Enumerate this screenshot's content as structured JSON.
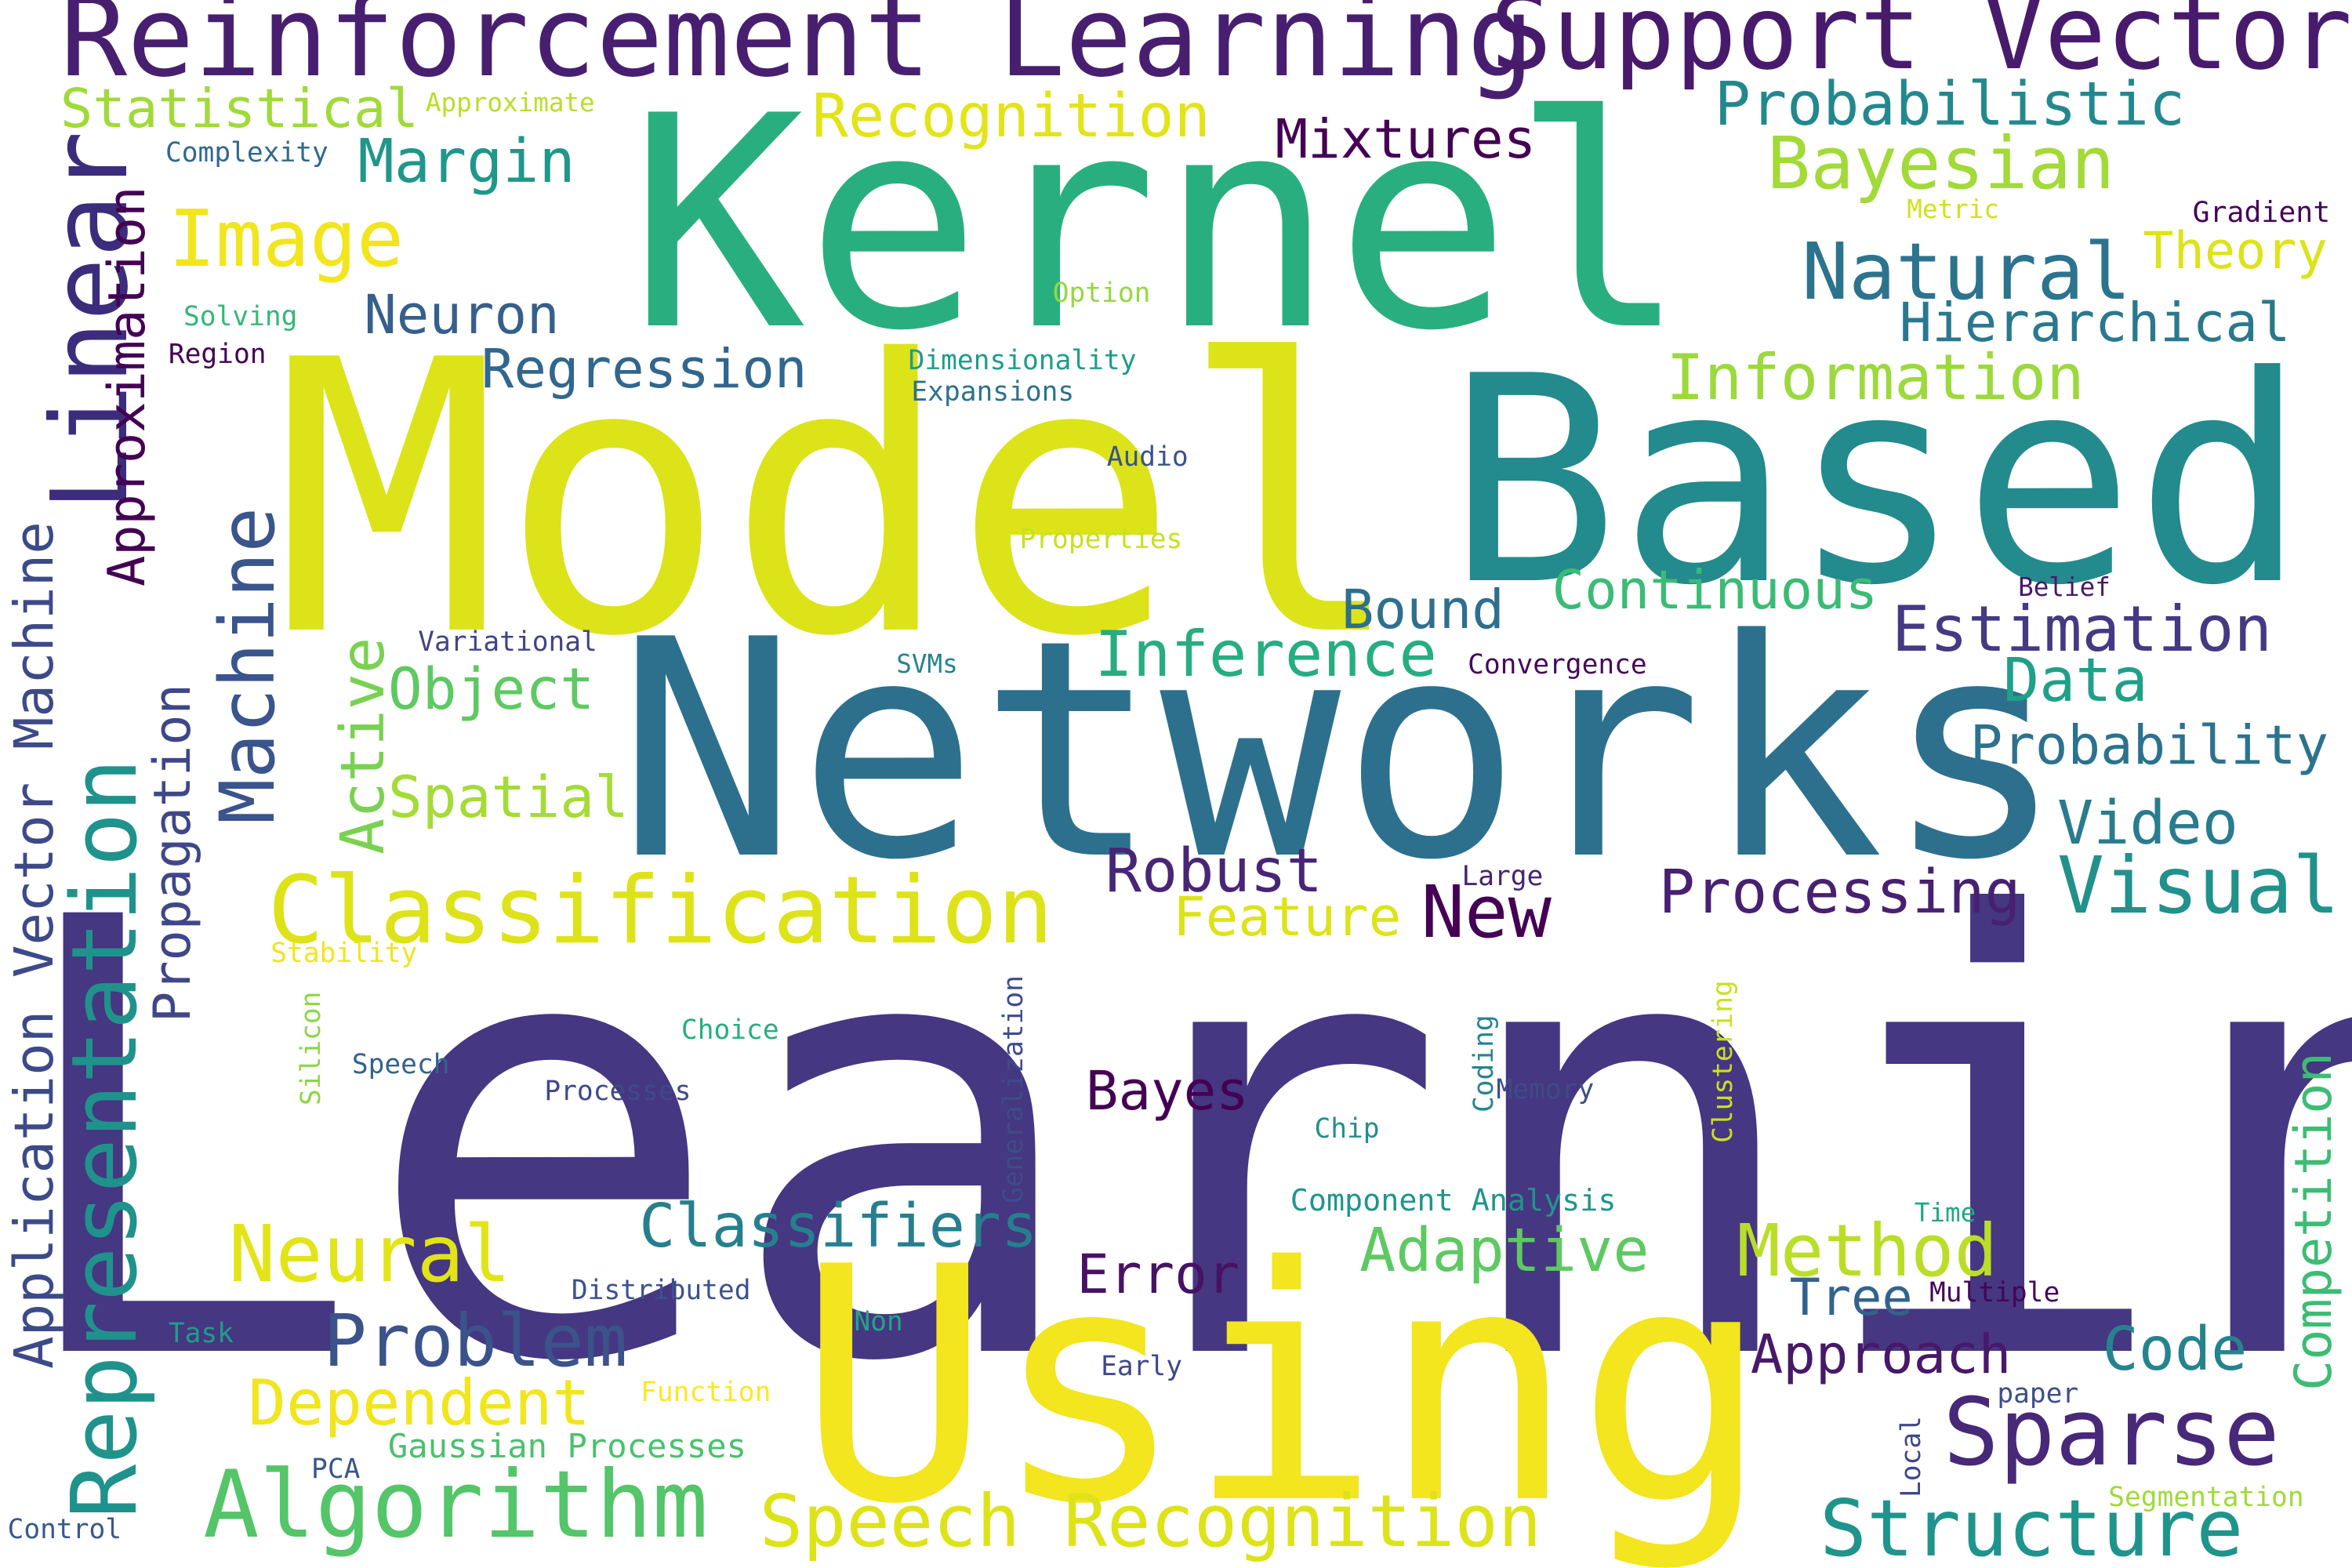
{
  "words": [
    {
      "text": "Learning",
      "color": "#453781"
    },
    {
      "text": "Model",
      "color": "#dce319"
    },
    {
      "text": "Networks",
      "color": "#2d708e"
    },
    {
      "text": "Kernel",
      "color": "#29af7f"
    },
    {
      "text": "Based",
      "color": "#238a8d"
    },
    {
      "text": "Using",
      "color": "#f3e51e"
    },
    {
      "text": "Reinforcement Learning",
      "color": "#481f70"
    },
    {
      "text": "Support Vector",
      "color": "#481a6c"
    },
    {
      "text": "Linear",
      "color": "#3b2d7c"
    },
    {
      "text": "Approximation",
      "color": "#440154"
    },
    {
      "text": "Application Vector Machine",
      "color": "#3d4a89"
    },
    {
      "text": "Representation",
      "color": "#20928c"
    },
    {
      "text": "Propagation",
      "color": "#3f4788"
    },
    {
      "text": "Machine",
      "color": "#3a548c"
    },
    {
      "text": "Active",
      "color": "#7ad151"
    },
    {
      "text": "Statistical",
      "color": "#a0da39"
    },
    {
      "text": "Approximate",
      "color": "#bade28"
    },
    {
      "text": "Complexity",
      "color": "#31688e"
    },
    {
      "text": "Margin",
      "color": "#1f978b"
    },
    {
      "text": "Image",
      "color": "#f1e51d"
    },
    {
      "text": "Solving",
      "color": "#35b779"
    },
    {
      "text": "Region",
      "color": "#440154"
    },
    {
      "text": "Neuron",
      "color": "#355f8d"
    },
    {
      "text": "Recognition",
      "color": "#e2e418"
    },
    {
      "text": "Mixtures",
      "color": "#440154"
    },
    {
      "text": "Probabilistic",
      "color": "#23888e"
    },
    {
      "text": "Bayesian",
      "color": "#a2da37"
    },
    {
      "text": "Gradient",
      "color": "#450559"
    },
    {
      "text": "Metric",
      "color": "#d0e11c"
    },
    {
      "text": "Theory",
      "color": "#dde318"
    },
    {
      "text": "Natural",
      "color": "#2c738e"
    },
    {
      "text": "Option",
      "color": "#95d840"
    },
    {
      "text": "Hierarchical",
      "color": "#2a788e"
    },
    {
      "text": "Dimensionality",
      "color": "#1e9c89"
    },
    {
      "text": "Expansions",
      "color": "#2d718e"
    },
    {
      "text": "Regression",
      "color": "#31668e"
    },
    {
      "text": "Information",
      "color": "#9bd93c"
    },
    {
      "text": "Audio",
      "color": "#3b528b"
    },
    {
      "text": "Properties",
      "color": "#c8e020"
    },
    {
      "text": "Belief",
      "color": "#48186a"
    },
    {
      "text": "Bound",
      "color": "#2e6f8e"
    },
    {
      "text": "Continuous",
      "color": "#3bbb75"
    },
    {
      "text": "Estimation",
      "color": "#443a83"
    },
    {
      "text": "Variational",
      "color": "#414487"
    },
    {
      "text": "SVMs",
      "color": "#25838e"
    },
    {
      "text": "Inference",
      "color": "#26ad81"
    },
    {
      "text": "Convergence",
      "color": "#46085c"
    },
    {
      "text": "Object",
      "color": "#5ec962"
    },
    {
      "text": "Data",
      "color": "#1fa088"
    },
    {
      "text": "Probability",
      "color": "#2c728e"
    },
    {
      "text": "Spatial",
      "color": "#a5db36"
    },
    {
      "text": "Video",
      "color": "#297b8e"
    },
    {
      "text": "Classification",
      "color": "#dde318"
    },
    {
      "text": "Robust",
      "color": "#482576"
    },
    {
      "text": "Large",
      "color": "#482475"
    },
    {
      "text": "Visual",
      "color": "#21918c"
    },
    {
      "text": "Feature",
      "color": "#dde318"
    },
    {
      "text": "New",
      "color": "#440154"
    },
    {
      "text": "Processing",
      "color": "#482071"
    },
    {
      "text": "Stability",
      "color": "#f1e51d"
    },
    {
      "text": "Silicon",
      "color": "#8bd646"
    },
    {
      "text": "Generalization",
      "color": "#3e4c8a"
    },
    {
      "text": "Coding",
      "color": "#25848e"
    },
    {
      "text": "Clustering",
      "color": "#cae11f"
    },
    {
      "text": "Choice",
      "color": "#27ad81"
    },
    {
      "text": "Speech",
      "color": "#33638d"
    },
    {
      "text": "Processes",
      "color": "#3e4989"
    },
    {
      "text": "Bayes",
      "color": "#440154"
    },
    {
      "text": "Memory",
      "color": "#3e4a89"
    },
    {
      "text": "Chip",
      "color": "#228d8d"
    },
    {
      "text": "Competition",
      "color": "#3dbc74"
    },
    {
      "text": "Component Analysis",
      "color": "#1f958b"
    },
    {
      "text": "Time",
      "color": "#22a785"
    },
    {
      "text": "Classifiers",
      "color": "#277f8e"
    },
    {
      "text": "Neural",
      "color": "#e2e418"
    },
    {
      "text": "Adaptive",
      "color": "#5ec962"
    },
    {
      "text": "Method",
      "color": "#bade28"
    },
    {
      "text": "Error",
      "color": "#471164"
    },
    {
      "text": "Distributed",
      "color": "#3b528b"
    },
    {
      "text": "Tree",
      "color": "#33638d"
    },
    {
      "text": "Multiple",
      "color": "#450559"
    },
    {
      "text": "Task",
      "color": "#1f9e89"
    },
    {
      "text": "Non",
      "color": "#21a585"
    },
    {
      "text": "Problem",
      "color": "#3b528b"
    },
    {
      "text": "Approach",
      "color": "#48186a"
    },
    {
      "text": "Code",
      "color": "#25838e"
    },
    {
      "text": "Early",
      "color": "#3f4889"
    },
    {
      "text": "paper",
      "color": "#3d4e8a"
    },
    {
      "text": "Dependent",
      "color": "#f1e51d"
    },
    {
      "text": "Function",
      "color": "#fde725"
    },
    {
      "text": "Sparse",
      "color": "#482878"
    },
    {
      "text": "Local",
      "color": "#3f4788"
    },
    {
      "text": "Gaussian Processes",
      "color": "#4ac16d"
    },
    {
      "text": "PCA",
      "color": "#39568c"
    },
    {
      "text": "Algorithm",
      "color": "#54c568"
    },
    {
      "text": "Speech Recognition",
      "color": "#dde318"
    },
    {
      "text": "Segmentation",
      "color": "#9fda3a"
    },
    {
      "text": "Structure",
      "color": "#1f948c"
    },
    {
      "text": "Control",
      "color": "#38598c"
    }
  ]
}
